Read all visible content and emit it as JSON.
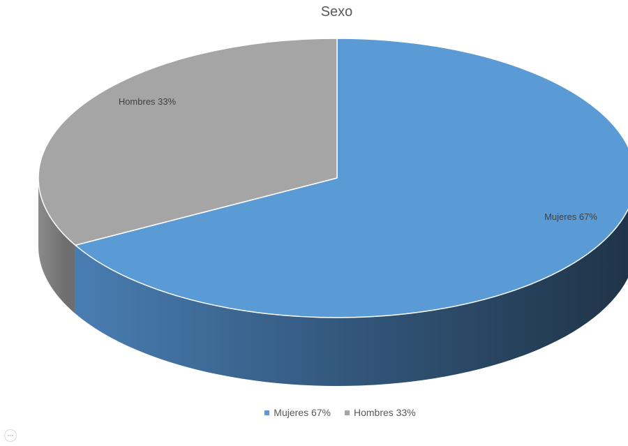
{
  "chart_data": {
    "type": "pie",
    "title": "Sexo",
    "categories": [
      "Mujeres",
      "Hombres"
    ],
    "values": [
      67,
      33
    ],
    "unit": "%",
    "data_labels": [
      "Mujeres 67%",
      "Hombres 33%"
    ],
    "legend_labels": [
      "Mujeres 67%",
      "Hombres 33%"
    ],
    "legend_position": "bottom",
    "style": "3d",
    "colors": [
      "#5b9bd5",
      "#a5a5a5"
    ]
  }
}
